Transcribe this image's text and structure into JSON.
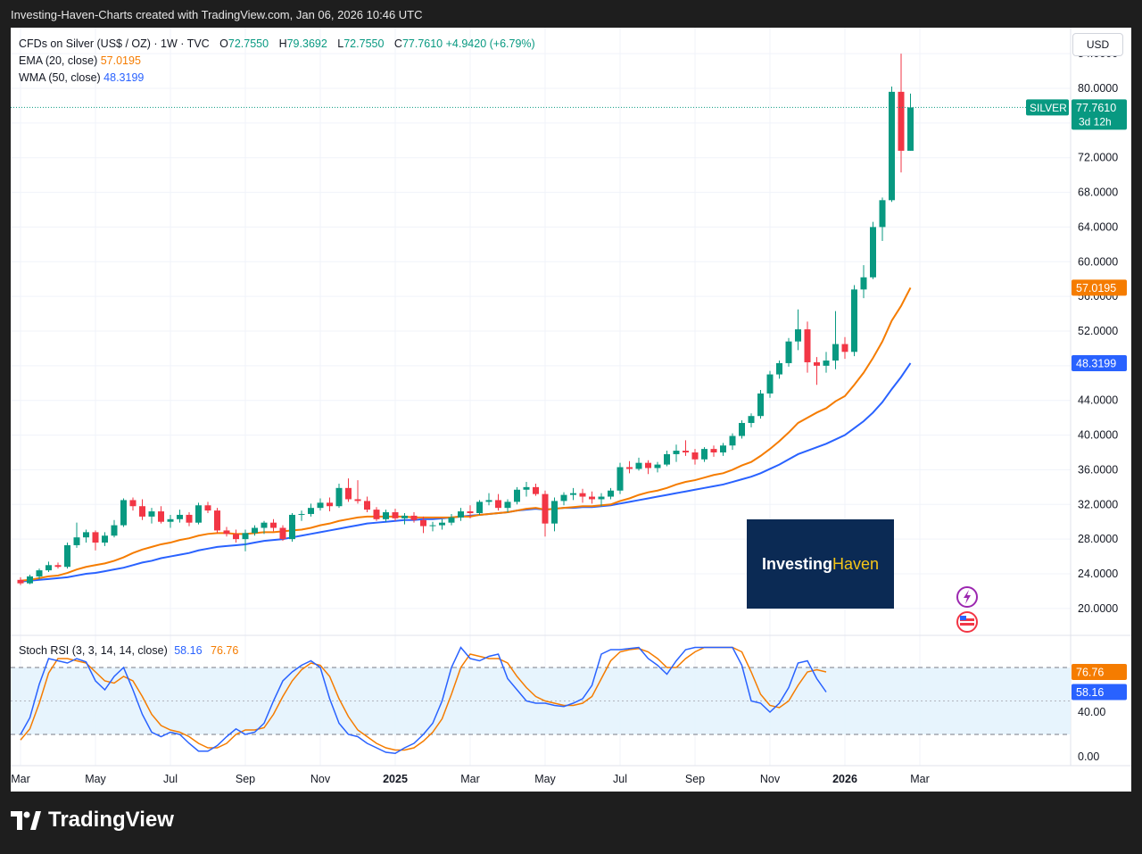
{
  "header": {
    "caption": "Investing-Haven-Charts created with TradingView.com, Jan 06, 2026 10:46 UTC"
  },
  "legend": {
    "symbol": "CFDs on Silver (US$ / OZ) · 1W · TVC",
    "o_label": "O",
    "o_value": "72.7550",
    "h_label": "H",
    "h_value": "79.3692",
    "l_label": "L",
    "l_value": "72.7550",
    "c_label": "C",
    "c_value": "77.7610",
    "change": "+4.9420 (+6.79%)",
    "ema_label": "EMA (20, close)",
    "ema_value": "57.0195",
    "wma_label": "WMA (50, close)",
    "wma_value": "48.3199"
  },
  "currency_button": "USD",
  "stoch_legend": {
    "label": "Stoch RSI (3, 3, 14, 14, close)",
    "k": "58.16",
    "d": "76.76"
  },
  "logo": {
    "part1": "Investing",
    "part2": "Haven"
  },
  "footer": {
    "brand": "TradingView"
  },
  "colors": {
    "up": "#089981",
    "down": "#f23645",
    "ema": "#f57c00",
    "wma": "#2962ff",
    "stoch_band": "#e3f2fd"
  },
  "chart_data": [
    {
      "type": "candlestick",
      "title": "CFDs on Silver (US$ / OZ) · 1W · TVC",
      "price_axis_ticks": [
        20,
        24,
        28,
        32,
        36,
        40,
        44,
        48,
        52,
        56,
        60,
        64,
        68,
        72,
        76,
        80,
        84
      ],
      "price_axis_labels": [
        "20.0000",
        "24.0000",
        "28.0000",
        "32.0000",
        "36.0000",
        "40.0000",
        "44.0000",
        "",
        "52.0000",
        "56.0000",
        "60.0000",
        "64.0000",
        "68.0000",
        "72.0000",
        "",
        "80.0000",
        "84.0000"
      ],
      "ylim": [
        17,
        87
      ],
      "x_labels": [
        "Mar",
        "May",
        "Jul",
        "Sep",
        "Nov",
        "2025",
        "Mar",
        "May",
        "Jul",
        "Sep",
        "Nov",
        "2026",
        "Mar"
      ],
      "weeks_from_first_candle_for_labels": [
        0,
        8,
        16,
        24,
        32,
        40,
        48,
        56,
        64,
        72,
        80,
        88,
        96
      ],
      "candles": [
        [
          23.3,
          23.6,
          22.7,
          22.9
        ],
        [
          22.9,
          23.9,
          22.8,
          23.7
        ],
        [
          23.7,
          24.6,
          23.4,
          24.4
        ],
        [
          24.4,
          25.4,
          24.2,
          25.0
        ],
        [
          25.0,
          25.3,
          24.6,
          24.8
        ],
        [
          24.8,
          27.6,
          24.6,
          27.3
        ],
        [
          27.3,
          29.9,
          27.0,
          28.2
        ],
        [
          28.2,
          29.1,
          27.6,
          28.8
        ],
        [
          28.8,
          29.0,
          26.7,
          27.6
        ],
        [
          27.6,
          28.8,
          27.2,
          28.4
        ],
        [
          28.4,
          30.2,
          28.2,
          29.6
        ],
        [
          29.6,
          32.7,
          29.4,
          32.5
        ],
        [
          32.5,
          32.8,
          31.3,
          31.8
        ],
        [
          31.8,
          32.6,
          30.2,
          30.6
        ],
        [
          30.6,
          31.6,
          29.8,
          31.2
        ],
        [
          31.2,
          31.8,
          29.8,
          30.0
        ],
        [
          30.0,
          30.8,
          29.3,
          30.3
        ],
        [
          30.3,
          31.4,
          29.9,
          30.8
        ],
        [
          30.8,
          31.1,
          29.5,
          29.9
        ],
        [
          29.9,
          32.2,
          29.7,
          31.9
        ],
        [
          31.9,
          32.3,
          31.0,
          31.3
        ],
        [
          31.3,
          31.6,
          28.7,
          29.0
        ],
        [
          29.0,
          29.4,
          28.3,
          28.6
        ],
        [
          28.6,
          29.1,
          27.6,
          28.0
        ],
        [
          28.0,
          29.1,
          26.6,
          28.7
        ],
        [
          28.7,
          29.6,
          28.4,
          29.3
        ],
        [
          29.3,
          30.1,
          28.6,
          29.9
        ],
        [
          29.9,
          30.3,
          28.9,
          29.3
        ],
        [
          29.3,
          29.6,
          27.8,
          28.0
        ],
        [
          28.0,
          31.0,
          27.7,
          30.8
        ],
        [
          30.8,
          31.3,
          30.1,
          30.9
        ],
        [
          30.9,
          32.1,
          30.6,
          31.6
        ],
        [
          31.6,
          32.7,
          31.3,
          32.2
        ],
        [
          32.2,
          32.8,
          31.2,
          31.8
        ],
        [
          31.8,
          34.4,
          31.6,
          33.9
        ],
        [
          33.9,
          35.0,
          32.3,
          32.6
        ],
        [
          32.6,
          34.8,
          32.1,
          32.4
        ],
        [
          32.4,
          32.9,
          31.1,
          31.4
        ],
        [
          31.4,
          31.7,
          30.1,
          30.3
        ],
        [
          30.3,
          31.4,
          30.0,
          31.1
        ],
        [
          31.1,
          31.5,
          30.1,
          30.4
        ],
        [
          30.4,
          31.0,
          29.7,
          30.7
        ],
        [
          30.7,
          31.1,
          29.9,
          30.2
        ],
        [
          30.2,
          30.6,
          28.7,
          29.5
        ],
        [
          29.5,
          30.0,
          28.9,
          29.6
        ],
        [
          29.6,
          30.3,
          29.1,
          29.9
        ],
        [
          29.9,
          30.9,
          29.6,
          30.5
        ],
        [
          30.5,
          31.6,
          30.1,
          31.2
        ],
        [
          31.2,
          31.9,
          30.4,
          31.0
        ],
        [
          31.0,
          32.5,
          30.8,
          32.3
        ],
        [
          32.3,
          33.3,
          31.9,
          32.5
        ],
        [
          32.5,
          33.2,
          31.3,
          31.6
        ],
        [
          31.6,
          32.6,
          31.1,
          32.3
        ],
        [
          32.3,
          34.0,
          32.0,
          33.7
        ],
        [
          33.7,
          34.6,
          32.9,
          34.0
        ],
        [
          34.0,
          34.4,
          33.0,
          33.2
        ],
        [
          33.2,
          33.6,
          28.3,
          29.8
        ],
        [
          29.8,
          32.8,
          28.9,
          32.4
        ],
        [
          32.4,
          33.4,
          31.9,
          33.1
        ],
        [
          33.1,
          33.9,
          32.5,
          33.3
        ],
        [
          33.3,
          33.8,
          32.2,
          32.9
        ],
        [
          32.9,
          33.5,
          32.1,
          32.6
        ],
        [
          32.6,
          33.3,
          31.8,
          32.9
        ],
        [
          32.9,
          33.9,
          32.6,
          33.6
        ],
        [
          33.6,
          36.8,
          33.2,
          36.3
        ],
        [
          36.3,
          37.0,
          35.6,
          36.1
        ],
        [
          36.1,
          37.4,
          35.9,
          36.8
        ],
        [
          36.8,
          37.1,
          35.5,
          36.2
        ],
        [
          36.2,
          36.9,
          35.7,
          36.6
        ],
        [
          36.6,
          38.2,
          36.4,
          37.8
        ],
        [
          37.8,
          38.9,
          36.9,
          38.2
        ],
        [
          38.2,
          39.4,
          37.6,
          38.0
        ],
        [
          38.0,
          38.4,
          36.6,
          37.2
        ],
        [
          37.2,
          38.6,
          36.9,
          38.4
        ],
        [
          38.4,
          38.8,
          37.5,
          38.0
        ],
        [
          38.0,
          39.1,
          37.6,
          38.8
        ],
        [
          38.8,
          40.2,
          38.3,
          39.9
        ],
        [
          39.9,
          41.7,
          39.6,
          41.4
        ],
        [
          41.4,
          42.5,
          40.9,
          42.2
        ],
        [
          42.2,
          45.2,
          41.9,
          44.8
        ],
        [
          44.8,
          47.4,
          44.3,
          47.0
        ],
        [
          47.0,
          48.6,
          46.5,
          48.3
        ],
        [
          48.3,
          51.2,
          47.9,
          50.8
        ],
        [
          50.8,
          54.5,
          49.8,
          52.2
        ],
        [
          52.2,
          53.1,
          47.2,
          48.4
        ],
        [
          48.4,
          49.0,
          45.8,
          48.0
        ],
        [
          48.0,
          49.6,
          47.2,
          48.6
        ],
        [
          48.6,
          54.3,
          47.6,
          50.5
        ],
        [
          50.5,
          51.3,
          48.8,
          49.6
        ],
        [
          49.6,
          57.3,
          49.1,
          56.8
        ],
        [
          56.8,
          59.6,
          55.8,
          58.2
        ],
        [
          58.2,
          64.6,
          58.0,
          64.0
        ],
        [
          64.0,
          67.4,
          62.4,
          67.1
        ],
        [
          67.1,
          80.2,
          66.9,
          79.6
        ],
        [
          79.6,
          84.0,
          70.3,
          72.8
        ],
        [
          72.8,
          79.4,
          72.8,
          77.8
        ]
      ],
      "ema_20": [
        23.2,
        23.3,
        23.5,
        23.7,
        23.8,
        24.1,
        24.5,
        24.8,
        25.0,
        25.2,
        25.5,
        25.9,
        26.4,
        26.8,
        27.1,
        27.4,
        27.6,
        27.9,
        28.1,
        28.4,
        28.6,
        28.7,
        28.7,
        28.6,
        28.6,
        28.7,
        28.8,
        28.8,
        28.9,
        29.0,
        29.1,
        29.3,
        29.6,
        29.8,
        30.1,
        30.3,
        30.5,
        30.6,
        30.6,
        30.6,
        30.6,
        30.6,
        30.5,
        30.5,
        30.5,
        30.5,
        30.5,
        30.6,
        30.6,
        30.8,
        30.9,
        31.0,
        31.1,
        31.3,
        31.5,
        31.6,
        31.4,
        31.5,
        31.6,
        31.7,
        31.8,
        31.8,
        31.9,
        32.0,
        32.4,
        32.7,
        33.1,
        33.4,
        33.6,
        33.9,
        34.3,
        34.6,
        34.8,
        35.1,
        35.4,
        35.6,
        36.0,
        36.5,
        36.9,
        37.6,
        38.4,
        39.3,
        40.3,
        41.4,
        42.0,
        42.6,
        43.1,
        43.9,
        44.5,
        45.8,
        47.2,
        48.9,
        50.8,
        53.2,
        54.9,
        57.0
      ],
      "wma_50": [
        23.1,
        23.2,
        23.3,
        23.4,
        23.5,
        23.6,
        23.8,
        24.0,
        24.1,
        24.3,
        24.5,
        24.7,
        25.0,
        25.3,
        25.5,
        25.8,
        26.0,
        26.2,
        26.4,
        26.7,
        26.9,
        27.1,
        27.2,
        27.3,
        27.4,
        27.6,
        27.8,
        27.9,
        28.0,
        28.2,
        28.4,
        28.6,
        28.8,
        29.0,
        29.2,
        29.4,
        29.6,
        29.8,
        29.9,
        30.0,
        30.1,
        30.2,
        30.2,
        30.3,
        30.3,
        30.4,
        30.5,
        30.6,
        30.7,
        30.8,
        30.9,
        31.0,
        31.1,
        31.3,
        31.4,
        31.5,
        31.4,
        31.5,
        31.6,
        31.6,
        31.7,
        31.7,
        31.8,
        31.9,
        32.1,
        32.3,
        32.5,
        32.7,
        32.9,
        33.1,
        33.3,
        33.5,
        33.7,
        33.9,
        34.1,
        34.3,
        34.6,
        34.9,
        35.2,
        35.6,
        36.1,
        36.6,
        37.2,
        37.8,
        38.2,
        38.6,
        39.0,
        39.5,
        40.0,
        40.8,
        41.6,
        42.6,
        43.8,
        45.3,
        46.7,
        48.3
      ],
      "last_price_label": "77.7610",
      "last_price_tag": "SILVER",
      "countdown": "3d 12h",
      "ema_label_value": "57.0195",
      "wma_label_value": "48.3199"
    },
    {
      "type": "line",
      "title": "Stoch RSI (3, 3, 14, 14, close)",
      "ylim": [
        -8,
        108
      ],
      "y_axis_labels": [
        "0.00",
        "40.00"
      ],
      "y_axis_ticks": [
        0,
        40
      ],
      "band": [
        20,
        80
      ],
      "midline": 50,
      "series": [
        {
          "name": "%K",
          "values": [
            20,
            35,
            65,
            88,
            86,
            84,
            88,
            85,
            68,
            60,
            72,
            80,
            60,
            38,
            22,
            18,
            22,
            20,
            12,
            5,
            5,
            10,
            18,
            25,
            20,
            22,
            30,
            50,
            68,
            76,
            82,
            86,
            80,
            52,
            30,
            20,
            18,
            12,
            8,
            4,
            3,
            8,
            12,
            20,
            30,
            50,
            80,
            98,
            88,
            86,
            90,
            92,
            70,
            60,
            50,
            48,
            48,
            46,
            45,
            48,
            52,
            64,
            92,
            96,
            96,
            97,
            98,
            88,
            82,
            74,
            86,
            96,
            98,
            98,
            98,
            98,
            98,
            82,
            50,
            48,
            40,
            48,
            62,
            84,
            86,
            70,
            58
          ]
        },
        {
          "name": "%D",
          "values": [
            15,
            25,
            48,
            75,
            88,
            88,
            86,
            84,
            76,
            68,
            66,
            72,
            68,
            54,
            38,
            28,
            24,
            22,
            18,
            12,
            8,
            8,
            12,
            20,
            24,
            24,
            26,
            38,
            54,
            68,
            78,
            84,
            82,
            72,
            52,
            36,
            24,
            18,
            12,
            8,
            6,
            6,
            8,
            14,
            22,
            34,
            56,
            80,
            92,
            90,
            88,
            88,
            84,
            72,
            62,
            54,
            50,
            48,
            46,
            46,
            48,
            54,
            70,
            86,
            94,
            96,
            97,
            94,
            88,
            80,
            80,
            88,
            94,
            98,
            98,
            98,
            98,
            94,
            76,
            56,
            46,
            44,
            50,
            64,
            76,
            78,
            76
          ]
        }
      ],
      "k_value": "58.16",
      "d_value": "76.76"
    }
  ]
}
